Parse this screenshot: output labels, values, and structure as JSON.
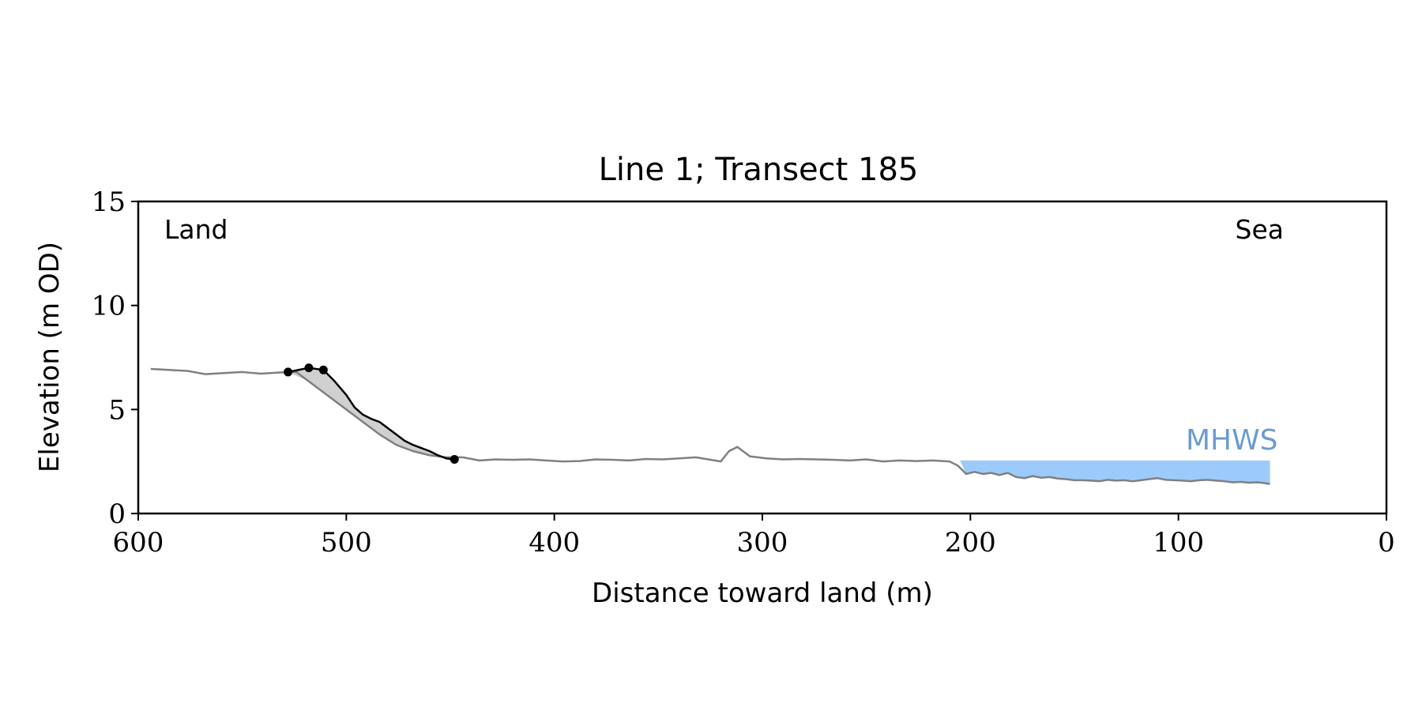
{
  "chart_data": {
    "type": "line",
    "title": "Line 1; Transect 185",
    "xlabel": "Distance toward land (m)",
    "ylabel": "Elevation (m OD)",
    "xlim": [
      600,
      0
    ],
    "ylim": [
      0,
      15
    ],
    "xticks": [
      600,
      500,
      400,
      300,
      200,
      100,
      0
    ],
    "yticks": [
      0,
      5,
      10,
      15
    ],
    "xtick_labels": [
      "600",
      "500",
      "400",
      "300",
      "200",
      "100",
      "0"
    ],
    "ytick_labels": [
      "0",
      "5",
      "10",
      "15"
    ],
    "annotations": {
      "land": "Land",
      "sea": "Sea",
      "mhws": "MHWS"
    },
    "grid": false,
    "colors": {
      "profile": "#808080",
      "cliff": "#000000",
      "eroded_area": "#d0d0d0",
      "mhws_fill": "#9ccbfb",
      "mhws_text": "#6a9ccf"
    },
    "mhws_level": 2.55,
    "mhws_x_range": [
      205,
      56
    ],
    "series": [
      {
        "role": "profile",
        "x": [
          594,
          585,
          576,
          568,
          559,
          550,
          541,
          532,
          524,
          516,
          508,
          500,
          492,
          484,
          476,
          468,
          460,
          452,
          444,
          436,
          428,
          420,
          412,
          404,
          396,
          388,
          380,
          372,
          364,
          356,
          348,
          340,
          332,
          326,
          320,
          316,
          312,
          306,
          298,
          290,
          282,
          274,
          266,
          258,
          250,
          242,
          234,
          226,
          218,
          210,
          206,
          202,
          198,
          194,
          190,
          186,
          182,
          178,
          174,
          170,
          166,
          162,
          158,
          154,
          150,
          146,
          142,
          138,
          134,
          130,
          126,
          122,
          118,
          114,
          110,
          106,
          102,
          98,
          94,
          90,
          86,
          82,
          78,
          74,
          70,
          66,
          62,
          58,
          56
        ],
        "y": [
          6.95,
          6.9,
          6.85,
          6.7,
          6.75,
          6.8,
          6.72,
          6.78,
          6.8,
          6.2,
          5.6,
          5.0,
          4.4,
          3.8,
          3.3,
          3.0,
          2.8,
          2.7,
          2.7,
          2.55,
          2.6,
          2.58,
          2.6,
          2.55,
          2.5,
          2.52,
          2.6,
          2.58,
          2.55,
          2.62,
          2.6,
          2.65,
          2.7,
          2.6,
          2.5,
          3.0,
          3.2,
          2.75,
          2.65,
          2.6,
          2.62,
          2.6,
          2.58,
          2.55,
          2.6,
          2.5,
          2.55,
          2.52,
          2.55,
          2.5,
          2.3,
          1.9,
          2.0,
          1.9,
          1.95,
          1.85,
          1.95,
          1.75,
          1.7,
          1.8,
          1.72,
          1.75,
          1.68,
          1.65,
          1.6,
          1.6,
          1.58,
          1.55,
          1.62,
          1.58,
          1.6,
          1.55,
          1.6,
          1.65,
          1.7,
          1.62,
          1.6,
          1.58,
          1.55,
          1.6,
          1.62,
          1.58,
          1.55,
          1.5,
          1.52,
          1.48,
          1.5,
          1.45,
          1.42
        ]
      },
      {
        "role": "cliff",
        "x": [
          528,
          518,
          511,
          506,
          500,
          496,
          492,
          488,
          484,
          480,
          476,
          472,
          468,
          464,
          460,
          456,
          452,
          448
        ],
        "y": [
          6.8,
          7.0,
          6.9,
          6.4,
          5.7,
          5.1,
          4.75,
          4.55,
          4.4,
          4.1,
          3.8,
          3.5,
          3.3,
          3.15,
          3.0,
          2.8,
          2.65,
          2.6
        ]
      }
    ],
    "markers": [
      {
        "x": 528,
        "y": 6.8
      },
      {
        "x": 518,
        "y": 7.0
      },
      {
        "x": 511,
        "y": 6.9
      },
      {
        "x": 448,
        "y": 2.6
      }
    ]
  }
}
